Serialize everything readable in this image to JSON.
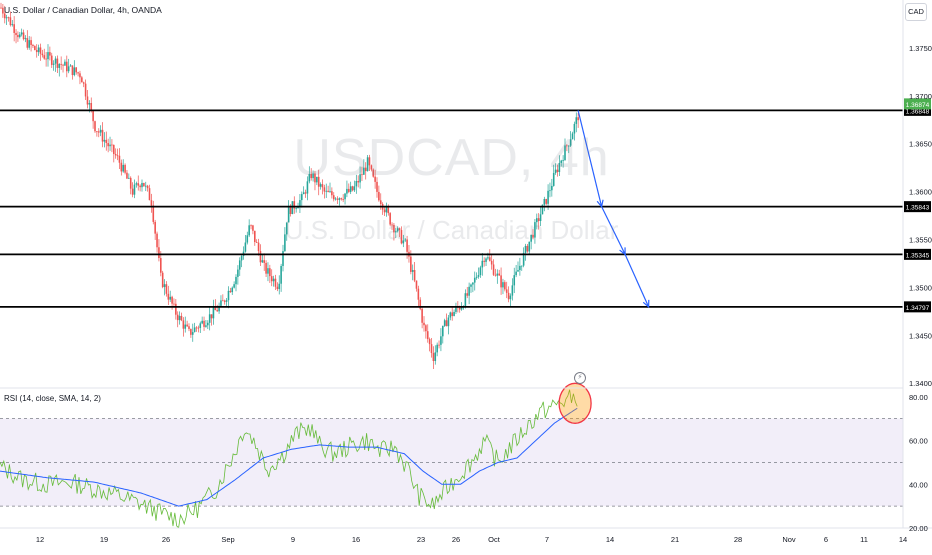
{
  "header": {
    "title": "U.S. Dollar / Canadian Dollar, 4h, OANDA",
    "currency": "CAD"
  },
  "watermark": {
    "symbol": "USDCAD, 4h",
    "description": "U.S. Dollar / Canadian Dollar"
  },
  "indicator": {
    "title": "RSI (14, close, SMA, 14, 2)",
    "icon": "lightning-icon"
  },
  "colors": {
    "up": "#26a69a",
    "down": "#ef5350",
    "level_line": "#000000",
    "arrow": "#2962ff",
    "rsi_line": "#66bb3a",
    "rsi_ma": "#2962ff",
    "rsi_band": "#7e57c2",
    "highlight_circle": "#f23645",
    "highlight_fill": "#ff9800",
    "price_tag_green": "#4caf50"
  },
  "chart_data": [
    {
      "type": "candlestick",
      "x_tick_labels": [
        "12",
        "19",
        "26",
        "Sep",
        "9",
        "16",
        "23",
        "26",
        "Oct",
        "7",
        "14",
        "21",
        "28",
        "Nov",
        "6",
        "11",
        "14"
      ],
      "y_tick_labels": [
        "1.37500",
        "1.37000",
        "1.36500",
        "1.36000",
        "1.35500",
        "1.35000",
        "1.34500",
        "1.34000"
      ],
      "ylim": [
        1.3395,
        1.38
      ],
      "price_path": [
        [
          0,
          1.3792
        ],
        [
          4,
          1.3762
        ],
        [
          8,
          1.3745
        ],
        [
          12,
          1.3735
        ],
        [
          17,
          1.3722
        ],
        [
          20,
          1.3668
        ],
        [
          25,
          1.3633
        ],
        [
          28,
          1.36
        ],
        [
          30,
          1.3612
        ],
        [
          32,
          1.359
        ],
        [
          34,
          1.351
        ],
        [
          37,
          1.3475
        ],
        [
          40,
          1.3452
        ],
        [
          44,
          1.3468
        ],
        [
          47,
          1.3482
        ],
        [
          50,
          1.3512
        ],
        [
          53,
          1.3565
        ],
        [
          56,
          1.352
        ],
        [
          59,
          1.3502
        ],
        [
          61,
          1.358
        ],
        [
          64,
          1.3592
        ],
        [
          66,
          1.3618
        ],
        [
          69,
          1.3598
        ],
        [
          72,
          1.3595
        ],
        [
          75,
          1.3602
        ],
        [
          78,
          1.363
        ],
        [
          80,
          1.36
        ],
        [
          83,
          1.3568
        ],
        [
          86,
          1.3545
        ],
        [
          88,
          1.3505
        ],
        [
          90,
          1.3458
        ],
        [
          92,
          1.3428
        ],
        [
          95,
          1.3468
        ],
        [
          98,
          1.3482
        ],
        [
          100,
          1.3498
        ],
        [
          103,
          1.3535
        ],
        [
          106,
          1.3508
        ],
        [
          108,
          1.3492
        ],
        [
          110,
          1.3518
        ],
        [
          113,
          1.3555
        ],
        [
          116,
          1.3592
        ],
        [
          118,
          1.362
        ],
        [
          121,
          1.3655
        ],
        [
          123,
          1.3682
        ]
      ],
      "levels": [
        {
          "price": 1.36848,
          "label": "1.36848"
        },
        {
          "price": 1.35843,
          "label": "1.35843"
        },
        {
          "price": 1.35345,
          "label": "1.35345"
        },
        {
          "price": 1.34797,
          "label": "1.34797"
        }
      ],
      "last_price": {
        "price": 1.36874,
        "label": "1.36874"
      },
      "projection_arrows": [
        {
          "from_bar": 123,
          "from": 1.36848,
          "to_bar": 128,
          "to": 1.35843
        },
        {
          "from_bar": 128,
          "from": 1.35843,
          "to_bar": 133,
          "to": 1.35345
        },
        {
          "from_bar": 133,
          "from": 1.35345,
          "to_bar": 138,
          "to": 1.34797
        }
      ]
    },
    {
      "type": "line",
      "name": "RSI",
      "y_tick_labels": [
        "80.00",
        "60.00",
        "40.00",
        "20.00"
      ],
      "ylim": [
        20,
        84
      ],
      "bands": [
        70,
        50,
        30
      ],
      "rsi_path": [
        [
          0,
          48
        ],
        [
          5,
          42
        ],
        [
          10,
          40
        ],
        [
          15,
          41
        ],
        [
          20,
          38
        ],
        [
          25,
          35
        ],
        [
          30,
          31
        ],
        [
          34,
          27
        ],
        [
          38,
          24
        ],
        [
          42,
          29
        ],
        [
          46,
          38
        ],
        [
          50,
          55
        ],
        [
          52,
          66
        ],
        [
          54,
          60
        ],
        [
          57,
          47
        ],
        [
          60,
          53
        ],
        [
          63,
          63
        ],
        [
          66,
          66
        ],
        [
          68,
          58
        ],
        [
          71,
          54
        ],
        [
          74,
          57
        ],
        [
          78,
          60
        ],
        [
          81,
          55
        ],
        [
          84,
          57
        ],
        [
          87,
          46
        ],
        [
          89,
          35
        ],
        [
          92,
          30
        ],
        [
          95,
          38
        ],
        [
          98,
          45
        ],
        [
          101,
          52
        ],
        [
          103,
          60
        ],
        [
          106,
          50
        ],
        [
          109,
          58
        ],
        [
          112,
          66
        ],
        [
          115,
          73
        ],
        [
          118,
          76
        ],
        [
          121,
          79
        ],
        [
          123,
          80
        ]
      ],
      "rsi_ma_path": [
        [
          0,
          46
        ],
        [
          10,
          43
        ],
        [
          20,
          41
        ],
        [
          30,
          36
        ],
        [
          38,
          30
        ],
        [
          44,
          33
        ],
        [
          50,
          42
        ],
        [
          56,
          52
        ],
        [
          62,
          56
        ],
        [
          68,
          58
        ],
        [
          74,
          57
        ],
        [
          80,
          57
        ],
        [
          86,
          54
        ],
        [
          90,
          46
        ],
        [
          94,
          40
        ],
        [
          98,
          40
        ],
        [
          102,
          46
        ],
        [
          106,
          50
        ],
        [
          110,
          52
        ],
        [
          114,
          60
        ],
        [
          118,
          68
        ],
        [
          123,
          75
        ]
      ]
    }
  ]
}
